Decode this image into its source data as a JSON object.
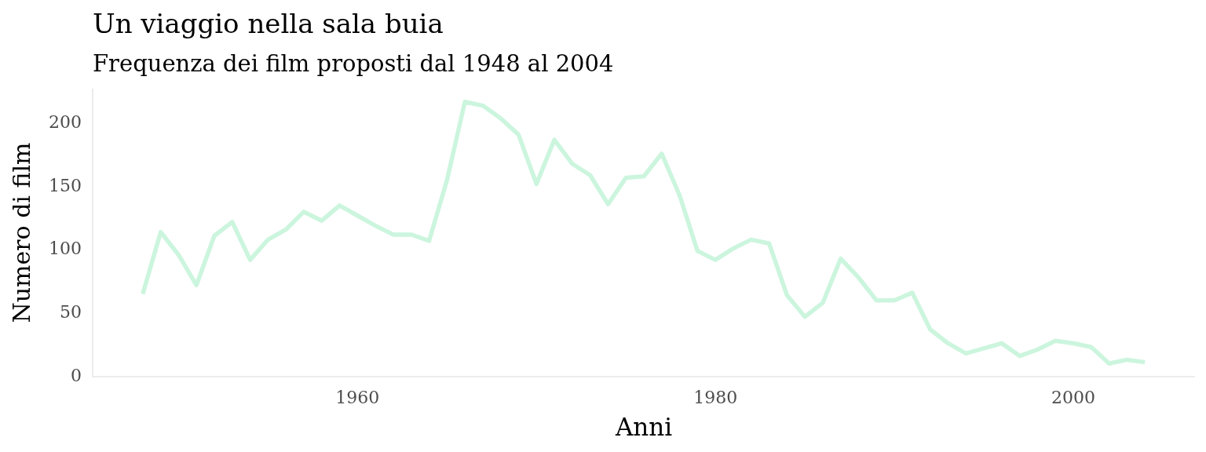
{
  "chart_data": {
    "type": "line",
    "title": "Un viaggio nella sala buia",
    "subtitle": "Frequenza dei film proposti dal 1948 al 2004",
    "xlabel": "Anni",
    "ylabel": "Numero di film",
    "x": [
      1948,
      1949,
      1950,
      1951,
      1952,
      1953,
      1954,
      1955,
      1956,
      1957,
      1958,
      1959,
      1960,
      1961,
      1962,
      1963,
      1964,
      1965,
      1966,
      1967,
      1968,
      1969,
      1970,
      1971,
      1972,
      1973,
      1974,
      1975,
      1976,
      1977,
      1978,
      1979,
      1980,
      1981,
      1982,
      1983,
      1984,
      1985,
      1986,
      1987,
      1988,
      1989,
      1990,
      1991,
      1992,
      1993,
      1994,
      1995,
      1996,
      1997,
      1998,
      1999,
      2000,
      2001,
      2002,
      2003,
      2004
    ],
    "series": [
      {
        "color": "#ccf5de",
        "values": [
          64,
          113,
          95,
          71,
          110,
          121,
          91,
          107,
          115,
          129,
          122,
          134,
          126,
          118,
          111,
          111,
          106,
          154,
          216,
          213,
          203,
          190,
          151,
          186,
          167,
          158,
          135,
          156,
          157,
          175,
          142,
          98,
          91,
          100,
          107,
          104,
          63,
          46,
          57,
          92,
          77,
          59,
          59,
          65,
          36,
          25,
          17,
          21,
          25,
          15,
          20,
          27,
          25,
          22,
          9,
          12,
          10
        ]
      }
    ],
    "xlim": [
      1945.2,
      2006.8
    ],
    "ylim": [
      -1.4,
      226.4
    ],
    "xticks": [
      1960,
      1980,
      2000
    ],
    "yticks": [
      0,
      50,
      100,
      150,
      200
    ],
    "line_style": "solid",
    "marker": "none"
  }
}
